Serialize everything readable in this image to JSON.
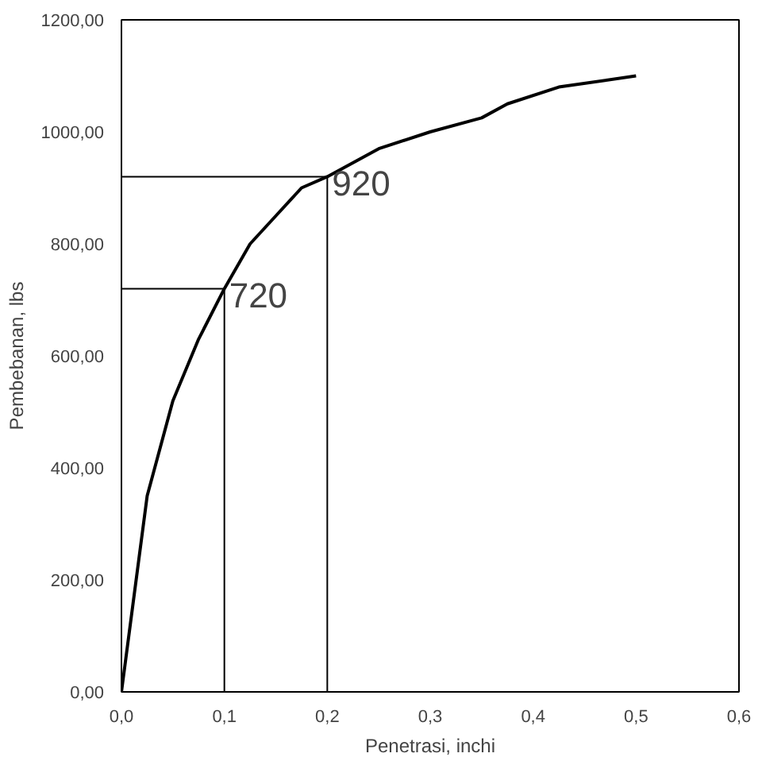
{
  "chart_data": {
    "type": "line",
    "xlabel": "Penetrasi, inchi",
    "ylabel": "Pembebanan, lbs",
    "xlim": [
      0,
      0.6
    ],
    "ylim": [
      0,
      1200
    ],
    "xticks": [
      {
        "value": 0,
        "label": "0,0"
      },
      {
        "value": 0.1,
        "label": "0,1"
      },
      {
        "value": 0.2,
        "label": "0,2"
      },
      {
        "value": 0.3,
        "label": "0,3"
      },
      {
        "value": 0.4,
        "label": "0,4"
      },
      {
        "value": 0.5,
        "label": "0,5"
      },
      {
        "value": 0.6,
        "label": "0,6"
      }
    ],
    "yticks": [
      {
        "value": 0,
        "label": "0,00"
      },
      {
        "value": 200,
        "label": "200,00"
      },
      {
        "value": 400,
        "label": "400,00"
      },
      {
        "value": 600,
        "label": "600,00"
      },
      {
        "value": 800,
        "label": "800,00"
      },
      {
        "value": 1000,
        "label": "1000,00"
      },
      {
        "value": 1200,
        "label": "1200,00"
      }
    ],
    "grid": false,
    "series": [
      {
        "color": "#000000",
        "x": [
          0,
          0.025,
          0.05,
          0.075,
          0.1,
          0.125,
          0.15,
          0.175,
          0.2,
          0.25,
          0.3,
          0.35,
          0.375,
          0.425,
          0.5
        ],
        "values": [
          0,
          350,
          520,
          630,
          720,
          800,
          850,
          900,
          920,
          970,
          1000,
          1025,
          1050,
          1080,
          1100
        ]
      },
      {
        "color": "#000000",
        "x": [
          0,
          0.1,
          0.1
        ],
        "values": [
          720,
          720,
          0
        ]
      },
      {
        "color": "#000000",
        "x": [
          0,
          0.2,
          0.2
        ],
        "values": [
          920,
          920,
          0
        ]
      }
    ],
    "annotations": [
      {
        "text": "720",
        "x": 0.1,
        "y": 720
      },
      {
        "text": "920",
        "x": 0.2,
        "y": 920
      }
    ]
  }
}
